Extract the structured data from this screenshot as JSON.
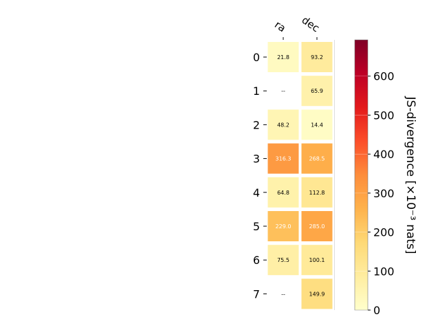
{
  "chart_data": {
    "type": "heatmap",
    "columns": [
      "ra",
      "dec"
    ],
    "rows": [
      "0",
      "1",
      "2",
      "3",
      "4",
      "5",
      "6",
      "7"
    ],
    "values": [
      [
        21.8,
        93.2
      ],
      [
        null,
        65.9
      ],
      [
        48.2,
        14.4
      ],
      [
        316.3,
        268.5
      ],
      [
        64.8,
        112.8
      ],
      [
        229.0,
        285.0
      ],
      [
        75.5,
        100.1
      ],
      [
        null,
        149.9
      ]
    ],
    "cell_labels": [
      [
        "21.8",
        "93.2"
      ],
      [
        "--",
        "65.9"
      ],
      [
        "48.2",
        "14.4"
      ],
      [
        "316.3",
        "268.5"
      ],
      [
        "64.8",
        "112.8"
      ],
      [
        "229.0",
        "285.0"
      ],
      [
        "75.5",
        "100.1"
      ],
      [
        "--",
        "149.9"
      ]
    ],
    "colorbar": {
      "label": "JS-divergence [×10⁻³ nats]",
      "range": [
        0,
        693
      ],
      "ticks": [
        0,
        100,
        200,
        300,
        400,
        500,
        600
      ],
      "tick_labels": [
        "0",
        "100",
        "200",
        "300",
        "400",
        "500",
        "600"
      ],
      "colormap": "YlOrRd"
    }
  }
}
